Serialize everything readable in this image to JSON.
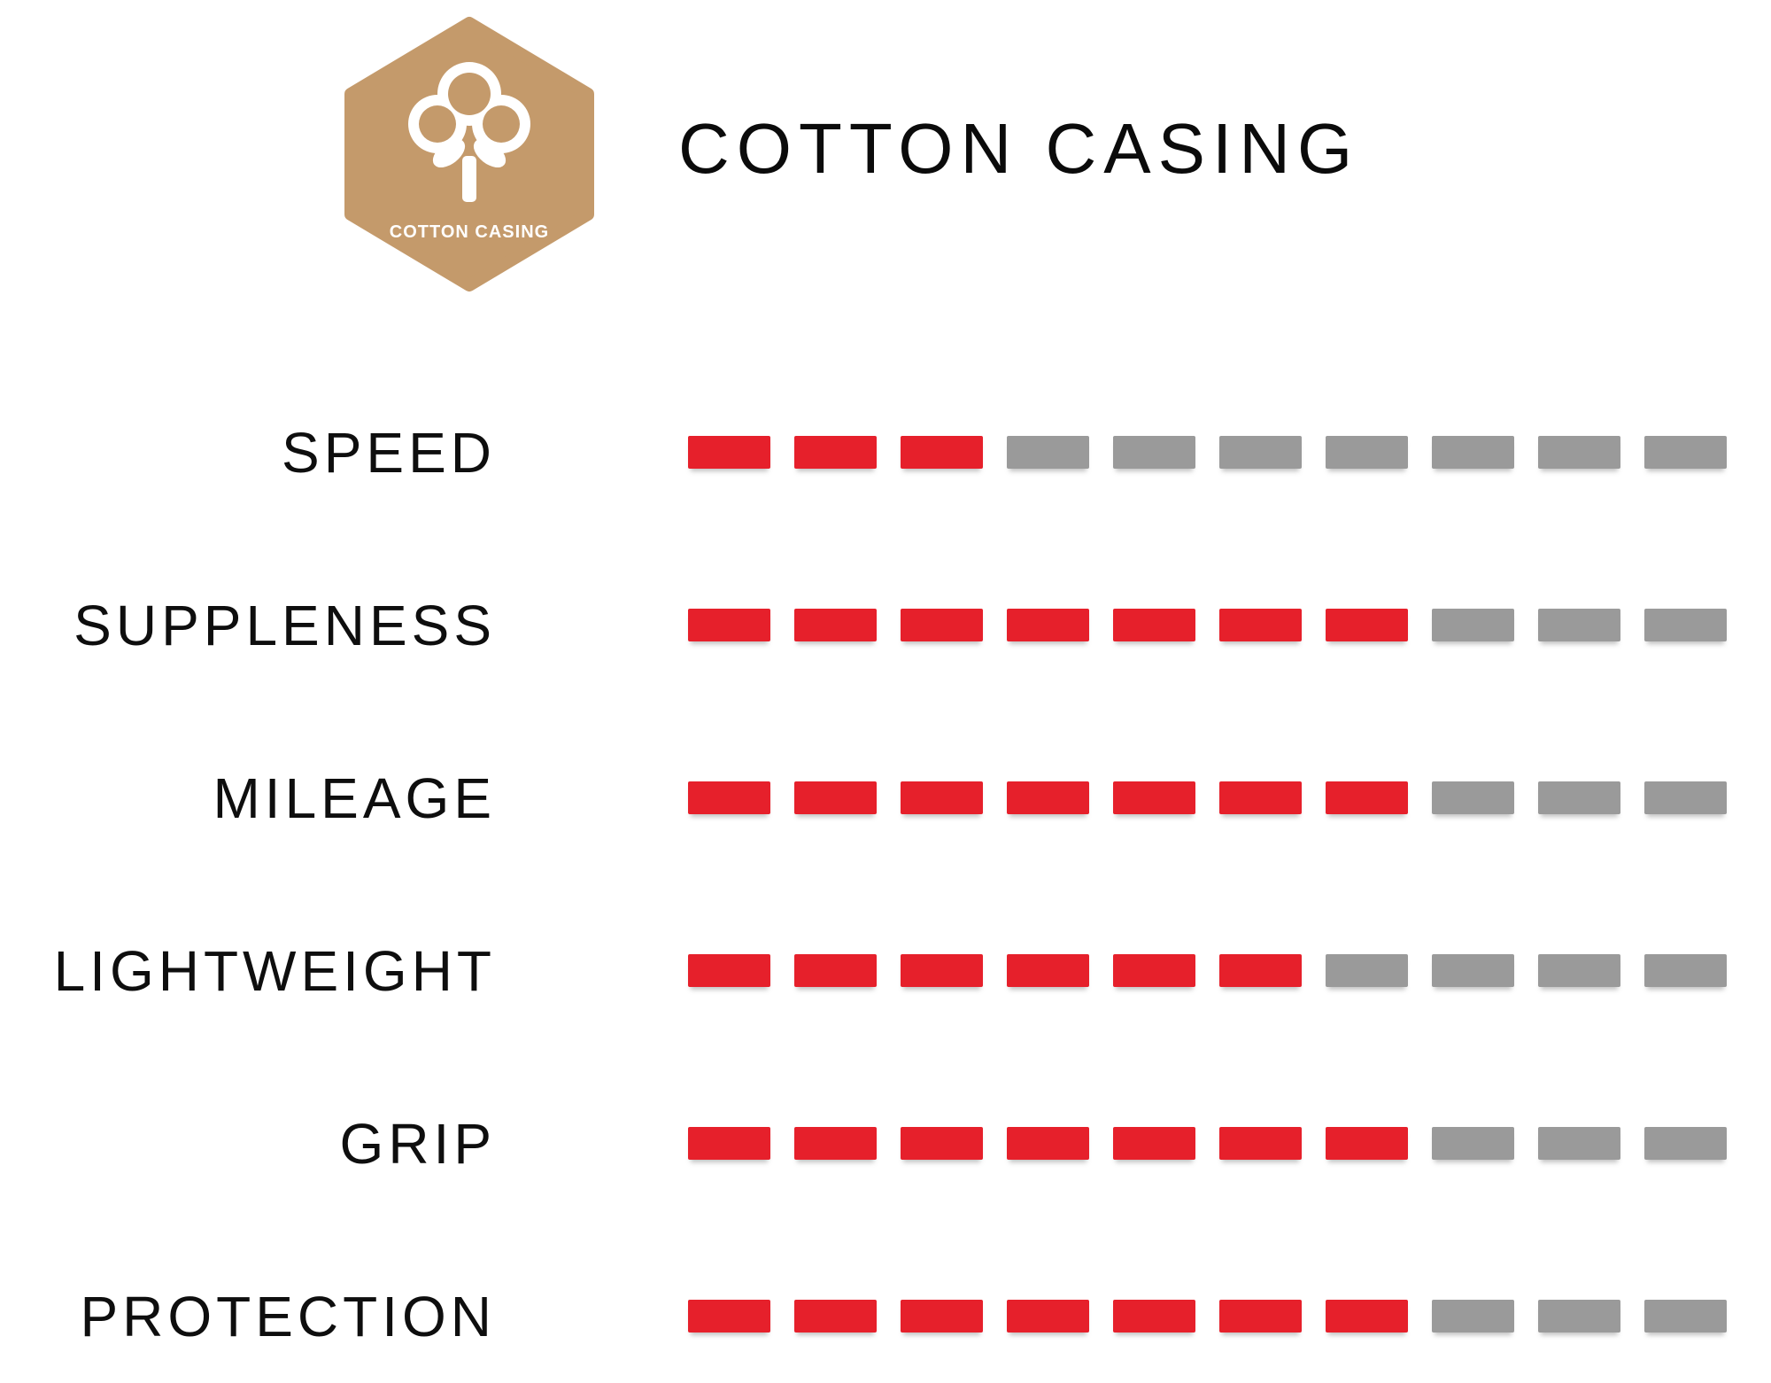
{
  "badge": {
    "label": "COTTON CASING",
    "color": "#c49a6b",
    "icon": "cotton-flower-icon"
  },
  "title": "COTTON CASING",
  "chart_data": {
    "type": "bar",
    "title": "COTTON CASING",
    "categories": [
      "SPEED",
      "SUPPLENESS",
      "MILEAGE",
      "LIGHTWEIGHT",
      "GRIP",
      "PROTECTION"
    ],
    "values": [
      3,
      7,
      7,
      6,
      7,
      7
    ],
    "scale_max": 10,
    "segment_style": "dashes",
    "filled_color": "#e6202b",
    "empty_color": "#9a9a9a",
    "legend": "none",
    "grid": "off"
  }
}
